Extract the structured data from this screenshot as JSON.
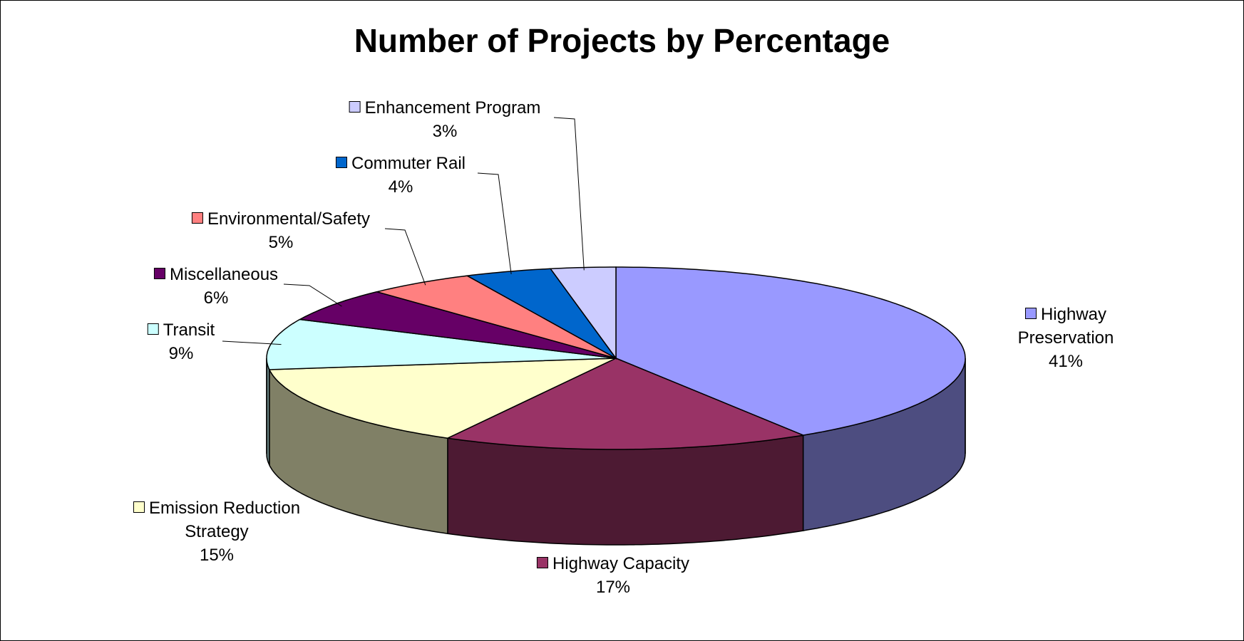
{
  "chart_data": {
    "type": "pie3d",
    "title": "Number of Projects by Percentage",
    "categories": [
      "Highway Preservation",
      "Highway Capacity",
      "Emission Reduction Strategy",
      "Transit",
      "Miscellaneous",
      "Environmental/Safety",
      "Commuter Rail",
      "Enhancement Program"
    ],
    "values": [
      41,
      17,
      15,
      9,
      6,
      5,
      4,
      3
    ],
    "value_labels": [
      "41%",
      "17%",
      "15%",
      "9%",
      "6%",
      "5%",
      "4%",
      "3%"
    ],
    "colors": [
      "#9999ff",
      "#993366",
      "#ffffcc",
      "#ccffff",
      "#660066",
      "#ff8080",
      "#0066cc",
      "#ccccff"
    ]
  }
}
